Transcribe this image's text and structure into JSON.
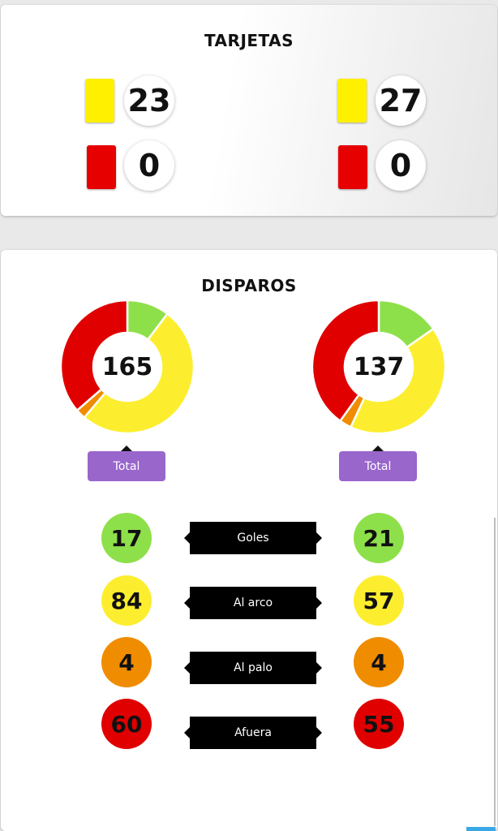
{
  "cards_section": {
    "title": "TARJETAS",
    "home": {
      "yellow": "23",
      "red": "0"
    },
    "away": {
      "yellow": "27",
      "red": "0"
    },
    "colors": {
      "yellow": "#fff000",
      "red": "#e60000"
    }
  },
  "shots_section": {
    "title": "DISPAROS",
    "home": {
      "total": "165",
      "total_label": "Total",
      "goles": "17",
      "al_arco": "84",
      "al_palo": "4",
      "afuera": "60"
    },
    "away": {
      "total": "137",
      "total_label": "Total",
      "goles": "21",
      "al_arco": "57",
      "al_palo": "4",
      "afuera": "55"
    },
    "labels": {
      "goles": "Goles",
      "al_arco": "Al arco",
      "al_palo": "Al palo",
      "afuera": "Afuera"
    },
    "colors": {
      "goles": "#8ee04a",
      "al_arco": "#fcee2e",
      "al_palo": "#ef8c00",
      "afuera": "#e00000"
    }
  },
  "chart_data": [
    {
      "type": "pie",
      "categories": [
        "Goles",
        "Al arco",
        "Al palo",
        "Afuera"
      ],
      "values": [
        17,
        84,
        4,
        60
      ],
      "center_label": "165"
    },
    {
      "type": "pie",
      "categories": [
        "Goles",
        "Al arco",
        "Al palo",
        "Afuera"
      ],
      "values": [
        21,
        57,
        4,
        55
      ],
      "center_label": "137"
    }
  ]
}
